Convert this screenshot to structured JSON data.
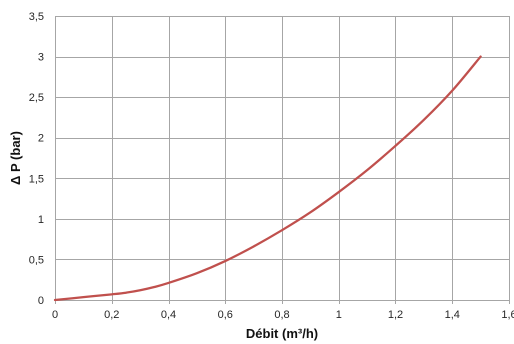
{
  "chart_data": {
    "type": "line",
    "xlabel": "Débit (m³/h)",
    "ylabel": "Δ P (bar)",
    "xlim": [
      0,
      1.6
    ],
    "ylim": [
      0,
      3.5
    ],
    "x_ticks": [
      0,
      0.2,
      0.4,
      0.6,
      0.8,
      1,
      1.2,
      1.4,
      1.6
    ],
    "x_tick_labels": [
      "0",
      "0,2",
      "0,4",
      "0,6",
      "0,8",
      "1",
      "1,2",
      "1,4",
      "1,6"
    ],
    "y_ticks": [
      0,
      0.5,
      1,
      1.5,
      2,
      2.5,
      3,
      3.5
    ],
    "y_tick_labels": [
      "0",
      "0,5",
      "1",
      "1,5",
      "2",
      "2,5",
      "3",
      "3,5"
    ],
    "grid": true,
    "legend": "none",
    "series": [
      {
        "color": "#c0504d",
        "x": [
          0,
          0.1,
          0.2,
          0.25,
          0.3,
          0.35,
          0.4,
          0.5,
          0.6,
          0.7,
          0.8,
          0.9,
          1.0,
          1.1,
          1.2,
          1.3,
          1.4,
          1.5
        ],
        "y": [
          0,
          0.035,
          0.07,
          0.09,
          0.12,
          0.16,
          0.21,
          0.33,
          0.48,
          0.66,
          0.86,
          1.08,
          1.33,
          1.6,
          1.9,
          2.22,
          2.58,
          3.0
        ]
      }
    ]
  }
}
